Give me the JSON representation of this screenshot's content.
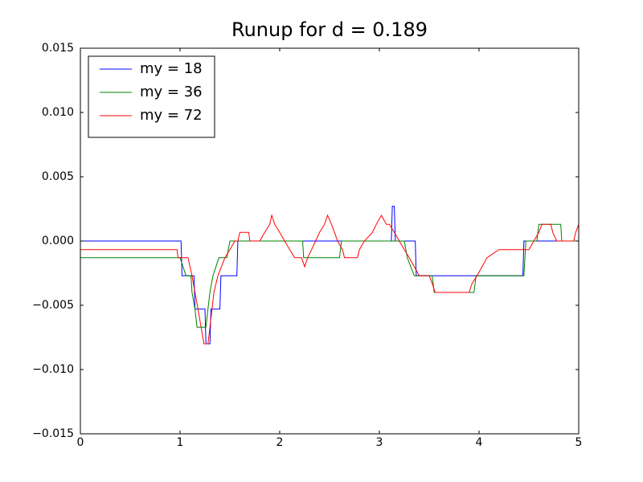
{
  "chart_data": {
    "type": "line",
    "title": "Runup for d = 0.189",
    "xlim": [
      0,
      5
    ],
    "ylim": [
      -0.015,
      0.015
    ],
    "xticks": [
      0,
      1,
      2,
      3,
      4,
      5
    ],
    "yticks": [
      {
        "value": -0.015,
        "label": "−0.015"
      },
      {
        "value": -0.01,
        "label": "−0.010"
      },
      {
        "value": -0.005,
        "label": "−0.005"
      },
      {
        "value": 0,
        "label": "0.000"
      },
      {
        "value": 0.005,
        "label": "0.005"
      },
      {
        "value": 0.01,
        "label": "0.010"
      },
      {
        "value": 0.015,
        "label": "0.015"
      }
    ],
    "legend": "upper left",
    "series": [
      {
        "name": "my = 18",
        "color": "#0000ff",
        "x": [
          0,
          1.01,
          1.02,
          1.14,
          1.15,
          1.25,
          1.26,
          1.3,
          1.31,
          1.4,
          1.41,
          1.57,
          1.58,
          3.12,
          3.13,
          3.15,
          3.16,
          3.36,
          3.37,
          4.44,
          4.45,
          5
        ],
        "values": [
          0,
          0,
          -0.0027,
          -0.0027,
          -0.0053,
          -0.0053,
          -0.008,
          -0.008,
          -0.0053,
          -0.0053,
          -0.0027,
          -0.0027,
          0,
          0,
          0.0027,
          0.0027,
          0,
          0,
          -0.0027,
          -0.0027,
          0,
          0
        ]
      },
      {
        "name": "my = 36",
        "color": "#008000",
        "x": [
          0,
          1.0,
          1.06,
          1.11,
          1.12,
          1.15,
          1.17,
          1.26,
          1.28,
          1.3,
          1.33,
          1.39,
          1.47,
          1.5,
          2.23,
          2.24,
          2.6,
          2.62,
          3.25,
          3.28,
          3.35,
          3.53,
          3.55,
          3.95,
          3.97,
          4.45,
          4.47,
          4.58,
          4.6,
          4.82,
          4.83,
          5
        ],
        "values": [
          -0.0013,
          -0.0013,
          -0.0027,
          -0.0027,
          -0.004,
          -0.0053,
          -0.0067,
          -0.0067,
          -0.0053,
          -0.004,
          -0.0027,
          -0.0013,
          -0.0013,
          0,
          0,
          -0.0013,
          -0.0013,
          0,
          0,
          -0.0013,
          -0.0027,
          -0.0027,
          -0.004,
          -0.004,
          -0.0027,
          -0.0027,
          0,
          0,
          0.0013,
          0.0013,
          0,
          0
        ]
      },
      {
        "name": "my = 72",
        "color": "#ff0000",
        "x": [
          0,
          0.97,
          0.98,
          1.08,
          1.12,
          1.18,
          1.24,
          1.28,
          1.3,
          1.34,
          1.38,
          1.45,
          1.5,
          1.55,
          1.58,
          1.6,
          1.69,
          1.7,
          1.8,
          1.85,
          1.9,
          1.92,
          1.95,
          2.0,
          2.05,
          2.1,
          2.15,
          2.22,
          2.25,
          2.28,
          2.32,
          2.36,
          2.4,
          2.45,
          2.48,
          2.52,
          2.55,
          2.58,
          2.63,
          2.65,
          2.78,
          2.8,
          2.85,
          2.93,
          2.97,
          3.02,
          3.07,
          3.1,
          3.15,
          3.2,
          3.25,
          3.3,
          3.35,
          3.4,
          3.5,
          3.53,
          3.56,
          3.9,
          3.93,
          3.98,
          4.03,
          4.08,
          4.2,
          4.5,
          4.55,
          4.6,
          4.63,
          4.72,
          4.74,
          4.78,
          4.95,
          4.97,
          5.0
        ],
        "values": [
          -0.00067,
          -0.00067,
          -0.0013,
          -0.0013,
          -0.0027,
          -0.0053,
          -0.008,
          -0.008,
          -0.0067,
          -0.004,
          -0.0027,
          -0.0013,
          -0.00067,
          0,
          0,
          0.00067,
          0.00067,
          0,
          0,
          0.00067,
          0.0013,
          0.002,
          0.0013,
          0.00067,
          0,
          -0.00067,
          -0.0013,
          -0.0013,
          -0.002,
          -0.0013,
          -0.00067,
          0,
          0.00067,
          0.0013,
          0.002,
          0.0013,
          0.00067,
          0,
          -0.00067,
          -0.0013,
          -0.0013,
          -0.00067,
          0,
          0.00067,
          0.0013,
          0.002,
          0.0013,
          0.0013,
          0.00067,
          0,
          -0.00067,
          -0.0013,
          -0.002,
          -0.0027,
          -0.0027,
          -0.0033,
          -0.004,
          -0.004,
          -0.0033,
          -0.0027,
          -0.002,
          -0.0013,
          -0.00067,
          -0.00067,
          0,
          0.00067,
          0.0013,
          0.0013,
          0.00067,
          0,
          0,
          0.00067,
          0.0013
        ]
      }
    ]
  }
}
